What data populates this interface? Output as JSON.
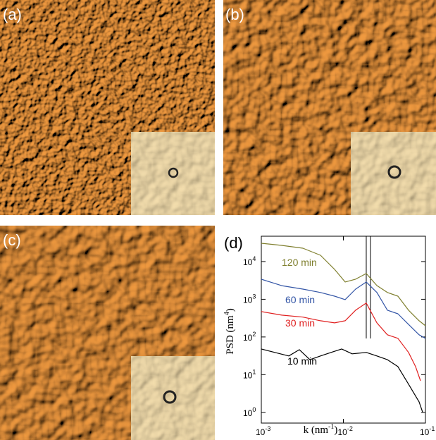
{
  "panels": [
    {
      "label": "(a)"
    },
    {
      "label": "(b)"
    },
    {
      "label": "(c)"
    }
  ],
  "chart_data": {
    "type": "line",
    "panel_label": "(d)",
    "xscale": "log",
    "yscale": "log",
    "xlabel": {
      "text": "k (nm",
      "sup": "-1",
      "tail": ")"
    },
    "ylabel": {
      "text": "PSD (nm",
      "sup": "4",
      "tail": ")"
    },
    "xlim": [
      0.001,
      0.1
    ],
    "ylim": [
      0.52,
      47000
    ],
    "xticks": [
      {
        "value": 0.001,
        "label": "10",
        "exponent": "-3"
      },
      {
        "value": 0.01,
        "label": "10",
        "exponent": "-2"
      },
      {
        "value": 0.1,
        "label": "10",
        "exponent": "-1"
      }
    ],
    "yticks": [
      {
        "value": 1,
        "label": "10",
        "exponent": "0"
      },
      {
        "value": 10,
        "label": "10",
        "exponent": "1"
      },
      {
        "value": 100,
        "label": "10",
        "exponent": "2"
      },
      {
        "value": 1000,
        "label": "10",
        "exponent": "3"
      },
      {
        "value": 10000,
        "label": "10",
        "exponent": "4"
      }
    ],
    "markers": [
      0.019,
      0.0214
    ],
    "series": [
      {
        "name": "120 min",
        "color": "#7f7f2e",
        "x": [
          0.001,
          0.00177,
          0.00321,
          0.00526,
          0.00781,
          0.0105,
          0.0141,
          0.019,
          0.0256,
          0.0344,
          0.0462,
          0.0622,
          0.0837,
          0.0999
        ],
        "values": [
          30600,
          26900,
          22600,
          14700,
          6200,
          2870,
          3410,
          4810,
          2310,
          1510,
          1210,
          513,
          269,
          199
        ]
      },
      {
        "name": "60 min",
        "color": "#3355a6",
        "x": [
          0.001,
          0.00177,
          0.00321,
          0.00526,
          0.00781,
          0.0105,
          0.0141,
          0.019,
          0.0256,
          0.0344,
          0.0462,
          0.0622,
          0.0837,
          0.0999
        ],
        "values": [
          3400,
          2300,
          1860,
          1510,
          1210,
          980,
          1860,
          2870,
          1510,
          513,
          412,
          215,
          114,
          92
        ]
      },
      {
        "name": "30 min",
        "color": "#e02020",
        "x": [
          0.001,
          0.00177,
          0.00321,
          0.00526,
          0.00781,
          0.0105,
          0.0141,
          0.019,
          0.0256,
          0.0344,
          0.0462,
          0.0622,
          0.0759,
          0.0871
        ],
        "values": [
          471,
          380,
          336,
          269,
          236,
          269,
          513,
          794,
          236,
          114,
          92,
          38.9,
          16.4,
          6.9
        ]
      },
      {
        "name": "10 min",
        "color": "#000000",
        "x": [
          0.001,
          0.00146,
          0.00216,
          0.00291,
          0.00391,
          0.00526,
          0.00708,
          0.00953,
          0.0128,
          0.019,
          0.0256,
          0.0344,
          0.0462,
          0.0622,
          0.0837,
          0.0925
        ],
        "values": [
          48,
          38.9,
          31.3,
          46,
          25,
          31.3,
          38.9,
          48,
          35.7,
          38.9,
          31.3,
          25,
          16.4,
          5.6,
          1.9,
          1.0
        ]
      }
    ]
  }
}
